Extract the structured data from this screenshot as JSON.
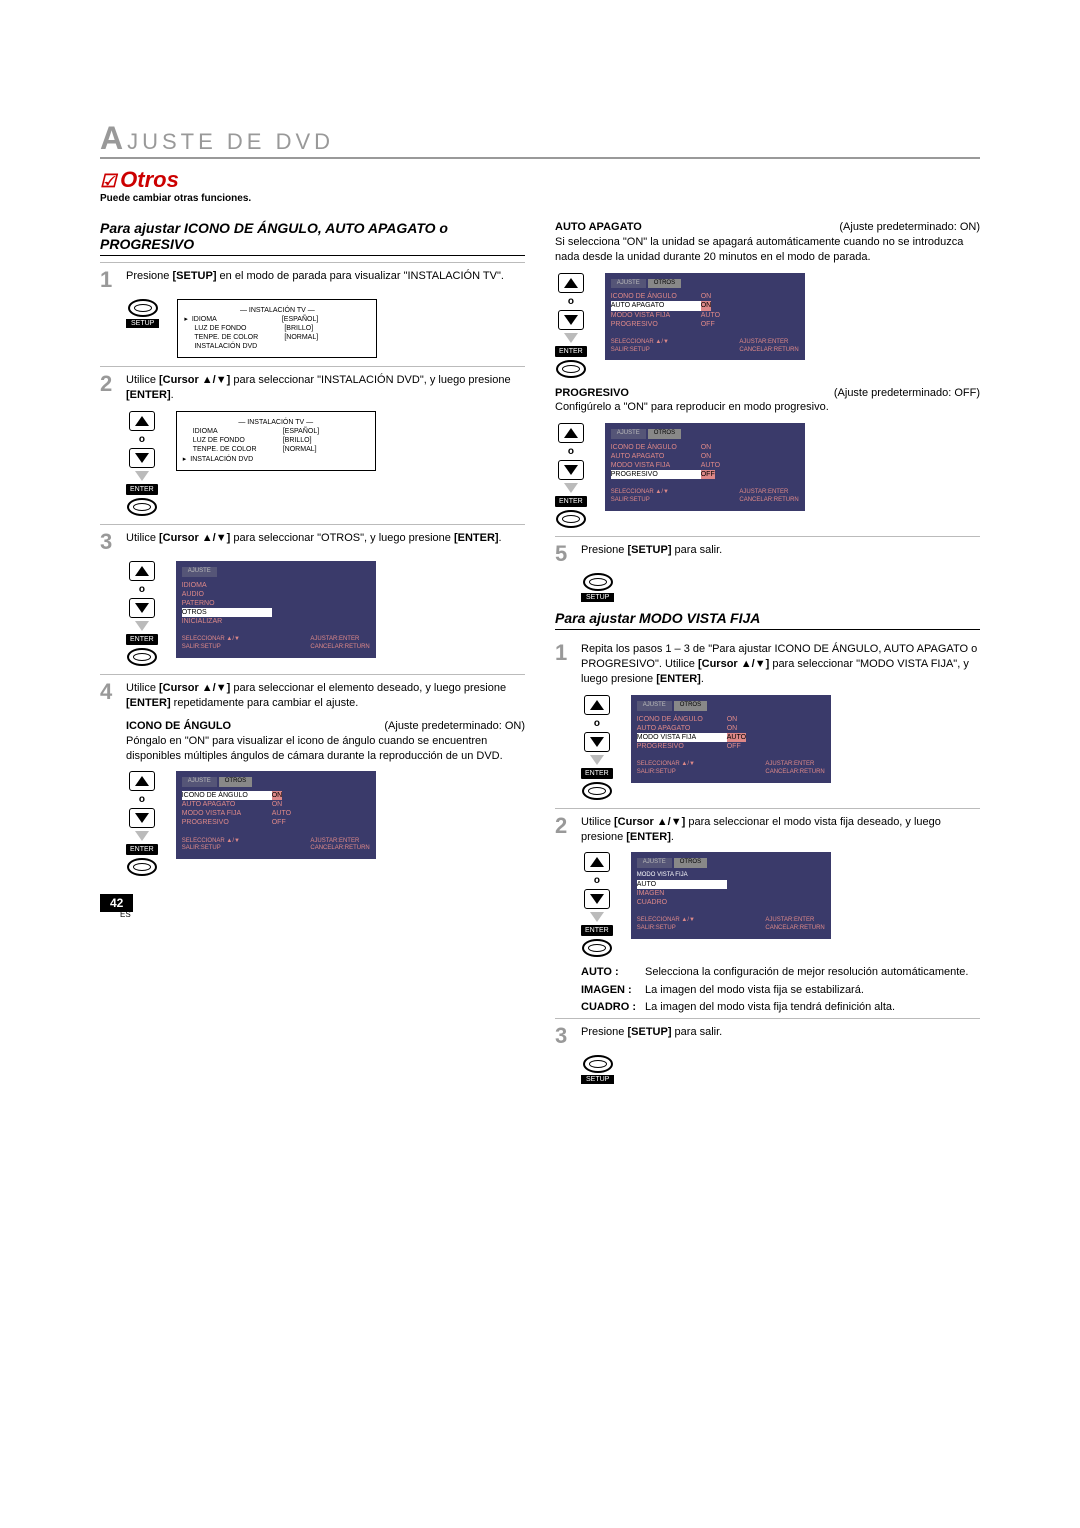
{
  "header": {
    "prefix": "A",
    "rest": "JUSTE DE DVD"
  },
  "section": {
    "title": "Otros",
    "note": "Puede cambiar otras funciones."
  },
  "h1": "Para ajustar ICONO DE ÁNGULO, AUTO APAGATO o PROGRESIVO",
  "h2": "Para ajustar MODO VISTA FIJA",
  "s1": {
    "a": "Presione ",
    "b": "[SETUP]",
    "c": " en el modo de parada para visualizar \"INSTALACIÓN TV\"."
  },
  "s2": {
    "a": "Utilice ",
    "b": "[Cursor ▲/▼]",
    "c": " para seleccionar \"INSTALACIÓN DVD\", y luego presione ",
    "d": "[ENTER]",
    "e": "."
  },
  "s3": {
    "a": "Utilice ",
    "b": "[Cursor ▲/▼]",
    "c": " para seleccionar \"OTROS\", y luego presione ",
    "d": "[ENTER]",
    "e": "."
  },
  "s4": {
    "a": "Utilice ",
    "b": "[Cursor ▲/▼]",
    "c": " para seleccionar el elemento deseado, y luego presione ",
    "d": "[ENTER]",
    "e": " repetidamente para cambiar el ajuste."
  },
  "s5": {
    "a": "Presione ",
    "b": "[SETUP]",
    "c": " para salir."
  },
  "s6": {
    "a": "Repita los pasos 1 – 3 de \"Para ajustar ICONO DE ÁNGULO, AUTO APAGATO o PROGRESIVO\". Utilice ",
    "b": "[Cursor ▲/▼]",
    "c": " para seleccionar \"MODO VISTA FIJA\", y luego presione ",
    "d": "[ENTER]",
    "e": "."
  },
  "s7": {
    "a": "Utilice ",
    "b": "[Cursor ▲/▼]",
    "c": " para seleccionar el modo vista fija deseado, y luego presione ",
    "d": "[ENTER]",
    "e": "."
  },
  "icono": {
    "t": "ICONO DE ÁNGULO",
    "def": "(Ajuste predeterminado: ON)",
    "txt": "Póngalo en \"ON\" para visualizar el icono de ángulo cuando se encuentren disponibles múltiples ángulos de cámara durante la reproducción de un DVD."
  },
  "auto": {
    "t": "AUTO APAGATO",
    "def": "(Ajuste predeterminado: ON)",
    "txt": "Si selecciona \"ON\" la unidad se apagará automáticamente cuando no se introduzca nada desde la unidad durante 20 minutos en el modo de parada."
  },
  "prog": {
    "t": "PROGRESIVO",
    "def": "(Ajuste predeterminado: OFF)",
    "txt": "Configúrelo a \"ON\" para reproducir en modo progresivo."
  },
  "enter": "ENTER",
  "setup": "SETUP",
  "osd_white": {
    "title": "— INSTALACIÓN TV —",
    "r1l": "IDIOMA",
    "r1r": "[ESPAÑOL]",
    "r2l": "LUZ DE FONDO",
    "r2r": "[BRILLO]",
    "r3l": "TENPE. DE COLOR",
    "r3r": "[NORMAL]",
    "r4l": "INSTALACIÓN DVD"
  },
  "osd_ajuste": {
    "tab": "AJUSTE",
    "i1": "IDIOMA",
    "i2": "AUDIO",
    "i3": "PATERNO",
    "i4": "OTROS",
    "i5": "INICIALIZAR",
    "f1": "SELECCIONAR ▲/▼",
    "f2": "AJUSTAR:ENTER",
    "f3": "SALIR:SETUP",
    "f4": "CANCELAR:RETURN"
  },
  "osd_otros": {
    "t1": "AJUSTE",
    "t2": "OTROS",
    "r1l": "ICONO DE ÁNGULO",
    "r1r": "ON",
    "r2l": "AUTO APAGATO",
    "r2r": "ON",
    "r3l": "MODO VISTA FIJA",
    "r3r": "AUTO",
    "r4l": "PROGRESIVO",
    "r4r": "OFF"
  },
  "osd_vista": {
    "t1": "AJUSTE",
    "t2": "OTROS",
    "sub": "MODO VISTA FIJA",
    "o1": "AUTO",
    "o2": "IMAGEN",
    "o3": "CUADRO"
  },
  "defs": {
    "a_t": "AUTO",
    "a_d": "Selecciona la configuración de mejor resolución automáticamente.",
    "b_t": "IMAGEN",
    "b_d": "La imagen del modo vista fija se estabilizará.",
    "c_t": "CUADRO",
    "c_d": "La imagen del modo vista fija tendrá definición alta."
  },
  "page": {
    "num": "42",
    "es": "ES"
  },
  "colon": " :"
}
